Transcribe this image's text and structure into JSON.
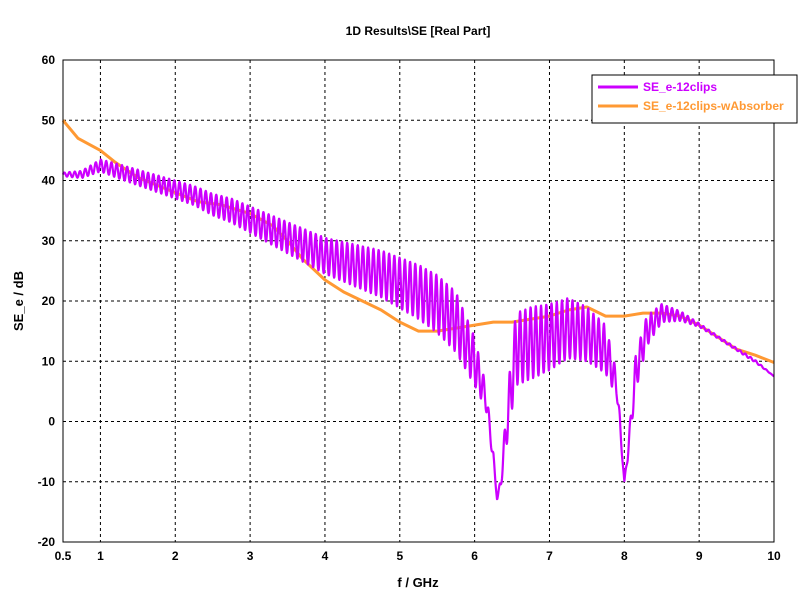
{
  "chart_data": {
    "type": "line",
    "title": "1D Results\\SE [Real Part]",
    "xlabel": "f / GHz",
    "ylabel": "SE_e / dB",
    "xlim": [
      0.5,
      10
    ],
    "ylim": [
      -20,
      60
    ],
    "x_ticks": [
      0.5,
      1,
      2,
      3,
      4,
      5,
      6,
      7,
      8,
      9,
      10
    ],
    "x_tick_labels": [
      "0.5",
      "1",
      "2",
      "3",
      "4",
      "5",
      "6",
      "7",
      "8",
      "9",
      "10"
    ],
    "y_ticks": [
      60,
      50,
      40,
      30,
      20,
      10,
      0,
      -10,
      -20
    ],
    "y_tick_labels": [
      "60",
      "50",
      "40",
      "30",
      "20",
      "10",
      "0",
      "-10",
      "-20"
    ],
    "grid": true,
    "legend": "top-right",
    "series": [
      {
        "name": "SE_e-12clips",
        "color": "#cc00ff",
        "x": [
          0.5,
          0.75,
          1.0,
          1.25,
          1.5,
          1.75,
          2.0,
          2.25,
          2.5,
          2.75,
          3.0,
          3.25,
          3.5,
          3.75,
          4.0,
          4.25,
          4.5,
          4.75,
          5.0,
          5.25,
          5.5,
          5.75,
          6.0,
          6.15,
          6.25,
          6.3,
          6.35,
          6.45,
          6.55,
          6.75,
          7.0,
          7.25,
          7.5,
          7.75,
          7.9,
          8.0,
          8.05,
          8.15,
          8.3,
          8.5,
          8.75,
          9.0,
          9.25,
          9.5,
          9.75,
          10.0
        ],
        "y": [
          41,
          41,
          42.5,
          41.5,
          40.5,
          39.5,
          38.5,
          37.5,
          36,
          35,
          33.5,
          32,
          30.5,
          29,
          27.5,
          26.5,
          25.5,
          24.5,
          23,
          21.5,
          19.5,
          16.5,
          10,
          4,
          -6,
          -13,
          -10,
          2,
          12,
          13,
          14,
          15.5,
          14.5,
          12,
          6,
          -10,
          -5,
          8,
          15,
          18,
          17.5,
          16,
          14,
          12,
          10,
          7.5
        ],
        "oscillation": [
          0.3,
          0.6,
          1,
          1.2,
          1.3,
          1.4,
          1.5,
          1.6,
          1.8,
          2,
          2.2,
          2.4,
          2.6,
          2.8,
          3,
          3.3,
          3.6,
          3.9,
          4.2,
          4.5,
          4.8,
          5,
          4,
          2,
          1,
          0,
          1,
          4,
          6,
          6,
          5.5,
          5,
          4.5,
          4,
          2,
          0,
          1,
          3,
          2.5,
          1.5,
          0.8,
          0.3,
          0.2,
          0.2,
          0.2,
          0
        ]
      },
      {
        "name": "SE_e-12clips-wAbsorber",
        "color": "#ff9933",
        "x": [
          0.5,
          0.7,
          1.0,
          1.2,
          1.5,
          2.0,
          2.3,
          2.6,
          3.0,
          3.3,
          3.5,
          3.7,
          4.0,
          4.25,
          4.5,
          4.75,
          5.0,
          5.25,
          5.5,
          5.75,
          6.0,
          6.25,
          6.5,
          6.75,
          7.0,
          7.25,
          7.5,
          7.75,
          8.0,
          8.25,
          8.5,
          8.75,
          9.0,
          9.25,
          9.5,
          9.75,
          10.0
        ],
        "y": [
          50,
          47,
          45,
          43,
          40.5,
          38,
          36.5,
          36,
          34.5,
          32.5,
          30,
          27,
          23.5,
          21.5,
          20,
          18.5,
          16.5,
          15,
          15,
          15.5,
          16,
          16.5,
          16.5,
          17,
          17.5,
          18.5,
          19,
          17.5,
          17.5,
          18,
          18,
          17.5,
          16,
          14,
          12,
          11,
          9.8
        ]
      }
    ]
  }
}
